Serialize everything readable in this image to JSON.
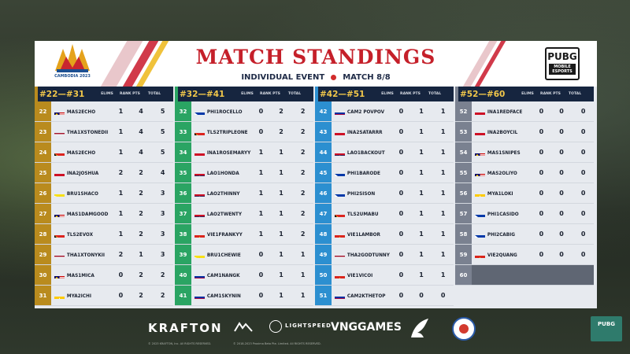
{
  "header": {
    "title": "MATCH STANDINGS",
    "event": "INDIVIDUAL EVENT",
    "match": "MATCH 8/8",
    "games_logo_text": "CAMBODIA 2023",
    "pubg_logo_big": "PUBG",
    "pubg_logo_small": "MOBILE ESPORTS"
  },
  "column_headers": {
    "elims": "ELIMS",
    "rank_pts": "RANK PTS",
    "total": "TOTAL"
  },
  "columns": [
    {
      "range": "#22—#31",
      "rank_color": "#b98b1e",
      "rows": [
        {
          "rank": "22",
          "flag": "MY",
          "player": "MAS2ECHO",
          "elims": "1",
          "rank_pts": "4",
          "total": "5"
        },
        {
          "rank": "23",
          "flag": "TH",
          "player": "THA1XSTONEDII",
          "elims": "1",
          "rank_pts": "4",
          "total": "5"
        },
        {
          "rank": "24",
          "flag": "TL",
          "player": "MAS2ECHO",
          "elims": "1",
          "rank_pts": "4",
          "total": "5"
        },
        {
          "rank": "25",
          "flag": "ID",
          "player": "INA2JOSHUA",
          "elims": "2",
          "rank_pts": "2",
          "total": "4"
        },
        {
          "rank": "26",
          "flag": "BN",
          "player": "BRU1SHACO",
          "elims": "1",
          "rank_pts": "2",
          "total": "3"
        },
        {
          "rank": "27",
          "flag": "MY",
          "player": "MAS1DAMGOOD",
          "elims": "1",
          "rank_pts": "2",
          "total": "3"
        },
        {
          "rank": "28",
          "flag": "TL",
          "player": "TLS2EVOX",
          "elims": "1",
          "rank_pts": "2",
          "total": "3"
        },
        {
          "rank": "29",
          "flag": "TH",
          "player": "THA1XTONYKII",
          "elims": "2",
          "rank_pts": "1",
          "total": "3"
        },
        {
          "rank": "30",
          "flag": "MY",
          "player": "MAS1MICA",
          "elims": "0",
          "rank_pts": "2",
          "total": "2"
        },
        {
          "rank": "31",
          "flag": "MM",
          "player": "MYA2ICHI",
          "elims": "0",
          "rank_pts": "2",
          "total": "2"
        }
      ]
    },
    {
      "range": "#32—#41",
      "rank_color": "#2aa463",
      "rows": [
        {
          "rank": "32",
          "flag": "PH",
          "player": "PHI1ROCELLO",
          "elims": "0",
          "rank_pts": "2",
          "total": "2"
        },
        {
          "rank": "33",
          "flag": "TL",
          "player": "TLS2TRIPLEONE",
          "elims": "0",
          "rank_pts": "2",
          "total": "2"
        },
        {
          "rank": "34",
          "flag": "ID",
          "player": "INA1ROSEMARYY",
          "elims": "1",
          "rank_pts": "1",
          "total": "2"
        },
        {
          "rank": "35",
          "flag": "LA",
          "player": "LAO1HONDA",
          "elims": "1",
          "rank_pts": "1",
          "total": "2"
        },
        {
          "rank": "36",
          "flag": "LA",
          "player": "LAO2THINNY",
          "elims": "1",
          "rank_pts": "1",
          "total": "2"
        },
        {
          "rank": "37",
          "flag": "LA",
          "player": "LAO2TWENTY",
          "elims": "1",
          "rank_pts": "1",
          "total": "2"
        },
        {
          "rank": "38",
          "flag": "VN",
          "player": "VIE1FRANKYY",
          "elims": "1",
          "rank_pts": "1",
          "total": "2"
        },
        {
          "rank": "39",
          "flag": "BN",
          "player": "BRU1CHEWIE",
          "elims": "0",
          "rank_pts": "1",
          "total": "1"
        },
        {
          "rank": "40",
          "flag": "KH",
          "player": "CAM1NANGK",
          "elims": "0",
          "rank_pts": "1",
          "total": "1"
        },
        {
          "rank": "41",
          "flag": "KH",
          "player": "CAM1SKYNIN",
          "elims": "0",
          "rank_pts": "1",
          "total": "1"
        }
      ]
    },
    {
      "range": "#42—#51",
      "rank_color": "#2c8fd0",
      "rows": [
        {
          "rank": "42",
          "flag": "KH",
          "player": "CAM2 POVPOV",
          "elims": "0",
          "rank_pts": "1",
          "total": "1"
        },
        {
          "rank": "43",
          "flag": "ID",
          "player": "INA2SATARRR",
          "elims": "0",
          "rank_pts": "1",
          "total": "1"
        },
        {
          "rank": "44",
          "flag": "LA",
          "player": "LAO1BACKOUT",
          "elims": "0",
          "rank_pts": "1",
          "total": "1"
        },
        {
          "rank": "45",
          "flag": "PH",
          "player": "PHI1BARODE",
          "elims": "0",
          "rank_pts": "1",
          "total": "1"
        },
        {
          "rank": "46",
          "flag": "PH",
          "player": "PHI2SISON",
          "elims": "0",
          "rank_pts": "1",
          "total": "1"
        },
        {
          "rank": "47",
          "flag": "TL",
          "player": "TLS2UMABU",
          "elims": "0",
          "rank_pts": "1",
          "total": "1"
        },
        {
          "rank": "48",
          "flag": "VN",
          "player": "VIE1LAMBOR",
          "elims": "0",
          "rank_pts": "1",
          "total": "1"
        },
        {
          "rank": "49",
          "flag": "TH",
          "player": "THA2GODTUNNY",
          "elims": "0",
          "rank_pts": "1",
          "total": "1"
        },
        {
          "rank": "50",
          "flag": "VN",
          "player": "VIE1VICOI",
          "elims": "0",
          "rank_pts": "1",
          "total": "1"
        },
        {
          "rank": "51",
          "flag": "KH",
          "player": "CAM2KTHETOP",
          "elims": "0",
          "rank_pts": "0",
          "total": "0"
        }
      ]
    },
    {
      "range": "#52—#60",
      "rank_color": "#7a8190",
      "rows": [
        {
          "rank": "52",
          "flag": "ID",
          "player": "INA1REDFACE",
          "elims": "0",
          "rank_pts": "0",
          "total": "0"
        },
        {
          "rank": "53",
          "flag": "ID",
          "player": "INA2BOYCIL",
          "elims": "0",
          "rank_pts": "0",
          "total": "0"
        },
        {
          "rank": "54",
          "flag": "MY",
          "player": "MAS1SNIPES",
          "elims": "0",
          "rank_pts": "0",
          "total": "0"
        },
        {
          "rank": "55",
          "flag": "MY",
          "player": "MAS2OLIYO",
          "elims": "0",
          "rank_pts": "0",
          "total": "0"
        },
        {
          "rank": "56",
          "flag": "MM",
          "player": "MYA1LOKI",
          "elims": "0",
          "rank_pts": "0",
          "total": "0"
        },
        {
          "rank": "57",
          "flag": "PH",
          "player": "PHI1CASIDO",
          "elims": "0",
          "rank_pts": "0",
          "total": "0"
        },
        {
          "rank": "58",
          "flag": "PH",
          "player": "PHI2CABIG",
          "elims": "0",
          "rank_pts": "0",
          "total": "0"
        },
        {
          "rank": "59",
          "flag": "VN",
          "player": "VIE2QUANG",
          "elims": "0",
          "rank_pts": "0",
          "total": "0"
        },
        {
          "rank": "60",
          "flag": "",
          "player": "",
          "elims": "",
          "rank_pts": "",
          "total": ""
        }
      ]
    }
  ],
  "colors": {
    "title_red": "#c5202a",
    "header_navy": "#16253f",
    "range_gold": "#f1c74a"
  },
  "footer": {
    "sponsors": [
      "KRAFTON",
      "LIGHTSPEED",
      "VNGGAMES"
    ],
    "copyright_1": "© 2023 KRAFTON, Inc. All RIGHTS RESERVED.",
    "copyright_2": "© 2018-2023 Proxima Beta Pte. Limited. All RIGHTS RESERVED."
  }
}
